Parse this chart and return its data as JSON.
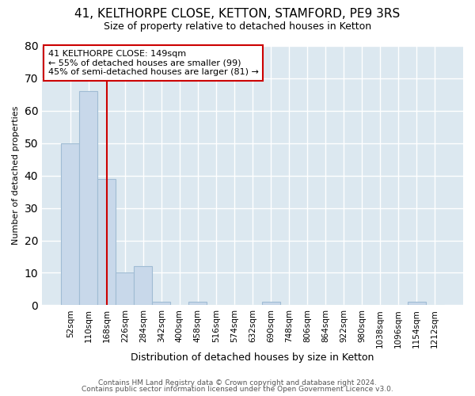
{
  "title1": "41, KELTHORPE CLOSE, KETTON, STAMFORD, PE9 3RS",
  "title2": "Size of property relative to detached houses in Ketton",
  "xlabel": "Distribution of detached houses by size in Ketton",
  "ylabel": "Number of detached properties",
  "categories": [
    "52sqm",
    "110sqm",
    "168sqm",
    "226sqm",
    "284sqm",
    "342sqm",
    "400sqm",
    "458sqm",
    "516sqm",
    "574sqm",
    "632sqm",
    "690sqm",
    "748sqm",
    "806sqm",
    "864sqm",
    "922sqm",
    "980sqm",
    "1038sqm",
    "1096sqm",
    "1154sqm",
    "1212sqm"
  ],
  "values": [
    50,
    66,
    39,
    10,
    12,
    1,
    0,
    1,
    0,
    0,
    0,
    1,
    0,
    0,
    0,
    0,
    0,
    0,
    0,
    1,
    0
  ],
  "bar_color": "#c8d8ea",
  "bar_edge_color": "#a0bcd4",
  "plot_bg_color": "#dce8f0",
  "fig_bg_color": "#ffffff",
  "ylim": [
    0,
    80
  ],
  "yticks": [
    0,
    10,
    20,
    30,
    40,
    50,
    60,
    70,
    80
  ],
  "red_line_x": 2.0,
  "annotation_text_line1": "41 KELTHORPE CLOSE: 149sqm",
  "annotation_text_line2": "← 55% of detached houses are smaller (99)",
  "annotation_text_line3": "45% of semi-detached houses are larger (81) →",
  "annotation_box_facecolor": "#ffffff",
  "annotation_box_edgecolor": "#cc0000",
  "grid_color": "#ffffff",
  "footer1": "Contains HM Land Registry data © Crown copyright and database right 2024.",
  "footer2": "Contains public sector information licensed under the Open Government Licence v3.0.",
  "title1_fontsize": 11,
  "title2_fontsize": 9,
  "xlabel_fontsize": 9,
  "ylabel_fontsize": 8,
  "tick_fontsize": 7.5,
  "footer_fontsize": 6.5
}
